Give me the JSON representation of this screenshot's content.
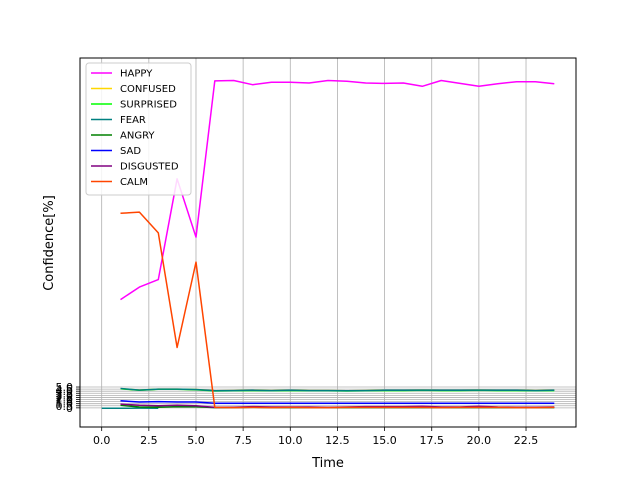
{
  "chart_data": {
    "type": "line",
    "title": "",
    "xlabel": "Time",
    "ylabel": "Confidence[%]",
    "grid": "x and y",
    "legend_position": "top-left",
    "xlim": [
      -1.15,
      25.15
    ],
    "ylim": [
      -4.6,
      84
    ],
    "x_ticks": [
      {
        "value": 0,
        "label": "0.0"
      },
      {
        "value": 2.5,
        "label": "2.5"
      },
      {
        "value": 5,
        "label": "5.0"
      },
      {
        "value": 7.5,
        "label": "7.5"
      },
      {
        "value": 10,
        "label": "10.0"
      },
      {
        "value": 12.5,
        "label": "12.5"
      },
      {
        "value": 15,
        "label": "15.0"
      },
      {
        "value": 17.5,
        "label": "17.5"
      },
      {
        "value": 20,
        "label": "20.0"
      },
      {
        "value": 22.5,
        "label": "22.5"
      }
    ],
    "y_ticks": [
      {
        "value": 0,
        "label": "0"
      },
      {
        "value": 0.5,
        "label": "0.5"
      },
      {
        "value": 1,
        "label": "1.0"
      },
      {
        "value": 1.5,
        "label": "1.5"
      },
      {
        "value": 2,
        "label": "2.0"
      },
      {
        "value": 2.5,
        "label": "2.5"
      },
      {
        "value": 3,
        "label": "3.0"
      },
      {
        "value": 3.5,
        "label": "3.5"
      },
      {
        "value": 4,
        "label": "4.0"
      },
      {
        "value": 4.5,
        "label": "4.5"
      },
      {
        "value": 5,
        "label": "5.0"
      }
    ],
    "series": [
      {
        "name": "HAPPY",
        "color": "#ff00ff",
        "x": [
          1,
          2,
          3,
          4,
          5,
          6,
          7,
          8,
          9,
          10,
          11,
          12,
          13,
          14,
          15,
          16,
          17,
          18,
          19,
          20,
          21,
          22,
          23,
          24
        ],
        "y": [
          26,
          29,
          30.8,
          55,
          41,
          78.5,
          78.6,
          77.6,
          78.2,
          78.2,
          78,
          78.6,
          78.4,
          78,
          77.9,
          78,
          77.2,
          78.6,
          77.9,
          77.2,
          77.8,
          78.3,
          78.3,
          77.8
        ]
      },
      {
        "name": "CONFUSED",
        "color": "#ffd700",
        "x": [
          1,
          2,
          3,
          4,
          5,
          6,
          7,
          8,
          9,
          10,
          11,
          12,
          13,
          14,
          15,
          16,
          17,
          18,
          19,
          20,
          21,
          22,
          23,
          24
        ],
        "y": [
          4.6,
          4.25,
          4.5,
          4.5,
          4.4,
          4.1,
          4.15,
          4.2,
          4.15,
          4.2,
          4.15,
          4.15,
          4.1,
          4.15,
          4.2,
          4.2,
          4.25,
          4.2,
          4.2,
          4.25,
          4.2,
          4.2,
          4.15,
          4.2
        ]
      },
      {
        "name": "SURPRISED",
        "color": "#00ff00",
        "x": [
          1,
          2,
          3,
          4,
          5,
          6,
          7,
          8,
          9,
          10,
          11,
          12,
          13,
          14,
          15,
          16,
          17,
          18,
          19,
          20,
          21,
          22,
          23,
          24
        ],
        "y": [
          4.6,
          4.2,
          4.45,
          4.45,
          4.35,
          4.05,
          4.1,
          4.15,
          4.1,
          4.15,
          4.1,
          4.1,
          4.05,
          4.1,
          4.15,
          4.15,
          4.2,
          4.15,
          4.15,
          4.2,
          4.15,
          4.15,
          4.1,
          4.15
        ]
      },
      {
        "name": "FEAR",
        "color": "#008080",
        "x": [
          1,
          2,
          3,
          4,
          5,
          6,
          7,
          8,
          9,
          10,
          11,
          12,
          13,
          14,
          15,
          16,
          17,
          18,
          19,
          20,
          21,
          22,
          23,
          24
        ],
        "y": [
          4.65,
          4.25,
          4.5,
          4.5,
          4.4,
          4.1,
          4.15,
          4.2,
          4.15,
          4.2,
          4.15,
          4.15,
          4.1,
          4.15,
          4.2,
          4.2,
          4.25,
          4.2,
          4.2,
          4.25,
          4.2,
          4.2,
          4.15,
          4.2
        ]
      },
      {
        "name": "FEAR",
        "color": "#008080",
        "x": [
          0,
          1,
          2,
          3
        ],
        "y": [
          -0.1,
          -0.1,
          -0.05,
          -0.1
        ]
      },
      {
        "name": "ANGRY",
        "color": "#008000",
        "x": [
          1,
          2,
          3,
          4,
          5,
          6,
          7,
          8,
          9,
          10,
          11,
          12,
          13,
          14,
          15,
          16,
          17,
          18,
          19,
          20,
          21,
          22,
          23,
          24
        ],
        "y": [
          0.6,
          0.2,
          0.15,
          0.3,
          0.25,
          0.05,
          0.05,
          0.1,
          0.05,
          0.05,
          0.05,
          0.05,
          0.05,
          0.05,
          0.05,
          0.05,
          0.05,
          0.05,
          0.05,
          0.05,
          0.05,
          0.05,
          0.05,
          0.05
        ]
      },
      {
        "name": "SAD",
        "color": "#0000ff",
        "x": [
          1,
          2,
          3,
          4,
          5,
          6,
          7,
          8,
          9,
          10,
          11,
          12,
          13,
          14,
          15,
          16,
          17,
          18,
          19,
          20,
          21,
          22,
          23,
          24
        ],
        "y": [
          1.7,
          1.4,
          1.5,
          1.4,
          1.4,
          1.1,
          1.1,
          1.1,
          1.1,
          1.1,
          1.1,
          1.1,
          1.1,
          1.1,
          1.1,
          1.1,
          1.1,
          1.1,
          1.1,
          1.1,
          1.1,
          1.1,
          1.1,
          1.1
        ]
      },
      {
        "name": "DISGUSTED",
        "color": "#800080",
        "x": [
          1,
          2,
          3,
          4,
          5,
          6,
          7,
          8,
          9,
          10,
          11,
          12,
          13,
          14,
          15,
          16,
          17,
          18,
          19,
          20,
          21,
          22,
          23,
          24
        ],
        "y": [
          0.9,
          0.6,
          0.5,
          0.6,
          0.5,
          0.1,
          0.15,
          0.3,
          0.2,
          0.2,
          0.2,
          0.1,
          0.2,
          0.3,
          0.3,
          0.3,
          0.4,
          0.2,
          0.2,
          0.4,
          0.2,
          0.15,
          0.15,
          0.2
        ]
      },
      {
        "name": "CALM",
        "color": "#ff4500",
        "x": [
          1,
          2,
          3,
          4,
          5,
          6,
          7,
          8,
          9,
          10,
          11,
          12,
          13,
          14,
          15,
          16,
          17,
          18,
          19,
          20,
          21,
          22,
          23,
          24
        ],
        "y": [
          46.7,
          47,
          42,
          14.5,
          35,
          0.1,
          0.05,
          0.1,
          0.05,
          0.1,
          0.05,
          0.05,
          0.1,
          0.1,
          0.1,
          0.1,
          0.1,
          0.05,
          0.1,
          0.1,
          0.1,
          0.05,
          0.05,
          0.1
        ]
      }
    ],
    "legend": [
      {
        "label": "HAPPY",
        "color": "#ff00ff"
      },
      {
        "label": "CONFUSED",
        "color": "#ffd700"
      },
      {
        "label": "SURPRISED",
        "color": "#00ff00"
      },
      {
        "label": "FEAR",
        "color": "#008080"
      },
      {
        "label": "ANGRY",
        "color": "#008000"
      },
      {
        "label": "SAD",
        "color": "#0000ff"
      },
      {
        "label": "DISGUSTED",
        "color": "#800080"
      },
      {
        "label": "CALM",
        "color": "#ff4500"
      }
    ]
  }
}
